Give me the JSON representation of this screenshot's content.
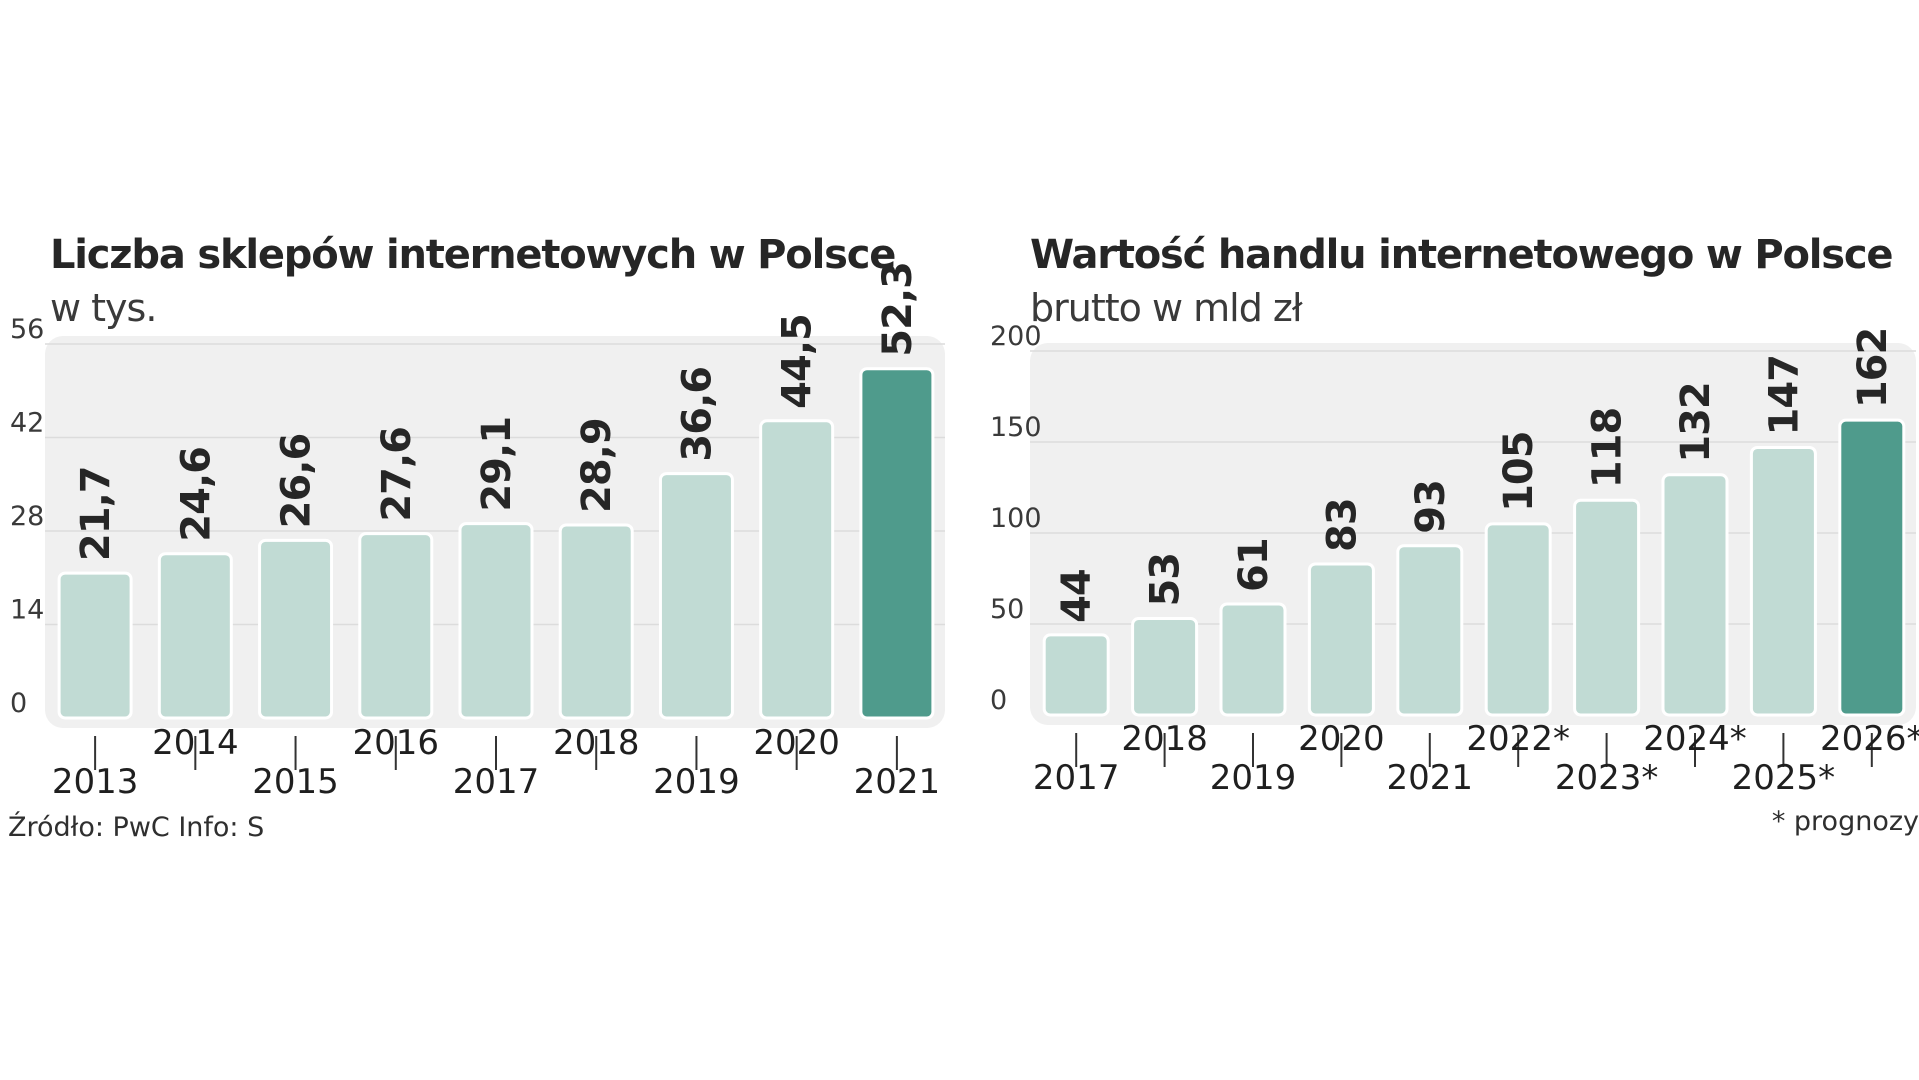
{
  "colors": {
    "bar": "#c1dbd4",
    "bar_highlight": "#4f9b8c",
    "bar_stroke": "#ffffff",
    "panel_bg": "#f0f0f0",
    "grid": "#dcdcdc",
    "text": "#262626"
  },
  "footer": {
    "source": "Źródło: PwC  Info: S",
    "note": "* prognozy"
  },
  "chart_data": [
    {
      "type": "bar",
      "title": "Liczba sklepów internetowych w Polsce",
      "subtitle": "w tys.",
      "xlabel": "",
      "ylabel": "",
      "categories": [
        "2013",
        "2014",
        "2015",
        "2016",
        "2017",
        "2018",
        "2019",
        "2020",
        "2021"
      ],
      "values": [
        21.7,
        24.6,
        26.6,
        27.6,
        29.1,
        28.9,
        36.6,
        44.5,
        52.3
      ],
      "value_labels": [
        "21,7",
        "24,6",
        "26,6",
        "27,6",
        "29,1",
        "28,9",
        "36,6",
        "44,5",
        "52,3"
      ],
      "highlight_index": 8,
      "ylim": [
        0,
        56
      ],
      "yticks": [
        0,
        14,
        28,
        42,
        56
      ],
      "grid": true,
      "legend": "none"
    },
    {
      "type": "bar",
      "title": "Wartość handlu internetowego w Polsce",
      "subtitle": "brutto w mld zł",
      "xlabel": "",
      "ylabel": "",
      "categories": [
        "2017",
        "2018",
        "2019",
        "2020",
        "2021",
        "2022*",
        "2023*",
        "2024*",
        "2025*",
        "2026*"
      ],
      "values": [
        44,
        53,
        61,
        83,
        93,
        105,
        118,
        132,
        147,
        162
      ],
      "value_labels": [
        "44",
        "53",
        "61",
        "83",
        "93",
        "105",
        "118",
        "132",
        "147",
        "162"
      ],
      "highlight_index": 9,
      "ylim": [
        0,
        200
      ],
      "yticks": [
        0,
        50,
        100,
        150,
        200
      ],
      "grid": true,
      "legend": "none"
    }
  ]
}
